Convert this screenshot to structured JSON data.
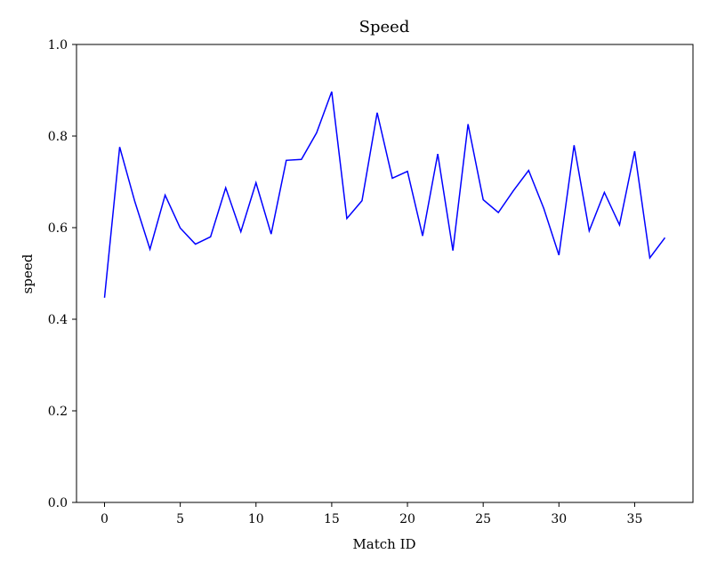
{
  "chart_data": {
    "type": "line",
    "title": "Speed",
    "xlabel": "Match ID",
    "ylabel": "speed",
    "xlim": [
      -1.85,
      38.85
    ],
    "ylim": [
      0.0,
      1.0
    ],
    "xticks": [
      0,
      5,
      10,
      15,
      20,
      25,
      30,
      35
    ],
    "yticks": [
      0.0,
      0.2,
      0.4,
      0.6,
      0.8,
      1.0
    ],
    "xtick_labels": [
      "0",
      "5",
      "10",
      "15",
      "20",
      "25",
      "30",
      "35"
    ],
    "ytick_labels": [
      "0.0",
      "0.2",
      "0.4",
      "0.6",
      "0.8",
      "1.0"
    ],
    "grid": false,
    "series": [
      {
        "color": "#0000ff",
        "x": [
          0,
          1,
          2,
          3,
          4,
          5,
          6,
          7,
          8,
          9,
          10,
          11,
          12,
          13,
          14,
          15,
          16,
          17,
          18,
          19,
          20,
          21,
          22,
          23,
          24,
          25,
          26,
          27,
          28,
          29,
          30,
          31,
          32,
          33,
          34,
          35,
          36,
          37
        ],
        "values": [
          0.447,
          0.776,
          0.657,
          0.553,
          0.671,
          0.599,
          0.564,
          0.58,
          0.687,
          0.591,
          0.698,
          0.586,
          0.747,
          0.749,
          0.807,
          0.897,
          0.62,
          0.659,
          0.851,
          0.708,
          0.723,
          0.582,
          0.761,
          0.55,
          0.826,
          0.661,
          0.633,
          0.681,
          0.725,
          0.642,
          0.54,
          0.78,
          0.593,
          0.677,
          0.606,
          0.767,
          0.534,
          0.578
        ]
      }
    ]
  }
}
